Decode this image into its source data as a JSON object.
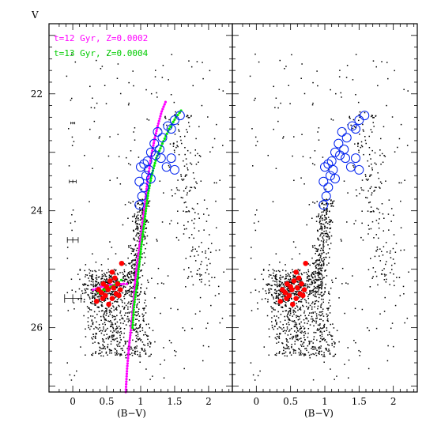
{
  "chart_data": [
    {
      "type": "scatter",
      "panel": "left",
      "y_axis_title": "V",
      "x_axis_title": "(B−V)",
      "xlim": [
        -0.35,
        2.35
      ],
      "ylim": [
        27.1,
        20.8
      ],
      "y_inverted": true,
      "x_ticks": [
        "0",
        "0.5",
        "1",
        "1.5",
        "2"
      ],
      "y_ticks": [
        "22",
        "24",
        "26"
      ],
      "legend": [
        {
          "label": "t=12 Gyr, Z=0.0002",
          "color": "#ff00ff"
        },
        {
          "label": "t=13 Gyr, Z=0.0004",
          "color": "#00ee00"
        }
      ],
      "isochrones": [
        {
          "color": "#ff00ff",
          "points": [
            [
              0.78,
              27.1
            ],
            [
              0.8,
              26.7
            ],
            [
              0.83,
              26.3
            ],
            [
              0.86,
              26.0
            ],
            [
              0.88,
              25.75
            ],
            [
              0.9,
              25.5
            ],
            [
              0.92,
              25.2
            ],
            [
              0.95,
              24.9
            ],
            [
              0.99,
              24.55
            ],
            [
              1.03,
              24.2
            ],
            [
              1.07,
              23.8
            ],
            [
              1.1,
              23.5
            ],
            [
              1.15,
              23.1
            ],
            [
              1.2,
              22.8
            ],
            [
              1.25,
              22.55
            ],
            [
              1.31,
              22.3
            ],
            [
              1.38,
              22.1
            ]
          ]
        },
        {
          "color": "#00ee00",
          "points": [
            [
              0.88,
              26.0
            ],
            [
              0.9,
              25.65
            ],
            [
              0.94,
              25.3
            ],
            [
              0.97,
              25.0
            ],
            [
              1.0,
              24.7
            ],
            [
              1.03,
              24.4
            ],
            [
              1.07,
              24.05
            ],
            [
              1.11,
              23.7
            ],
            [
              1.16,
              23.4
            ],
            [
              1.23,
              23.1
            ],
            [
              1.32,
              22.85
            ],
            [
              1.42,
              22.6
            ],
            [
              1.52,
              22.4
            ],
            [
              1.62,
              22.25
            ]
          ]
        },
        {
          "color": "#ff00ff",
          "points": [
            [
              0.3,
              25.35
            ],
            [
              0.42,
              25.3
            ],
            [
              0.55,
              25.27
            ],
            [
              0.65,
              25.27
            ],
            [
              0.75,
              25.25
            ],
            [
              0.84,
              25.25
            ]
          ]
        },
        {
          "color": "#00ee00",
          "points": [
            [
              0.38,
              25.4
            ],
            [
              0.5,
              25.33
            ],
            [
              0.6,
              25.28
            ],
            [
              0.68,
              25.22
            ],
            [
              0.75,
              25.15
            ]
          ]
        }
      ],
      "red_filled_points": [
        [
          0.38,
          25.35
        ],
        [
          0.42,
          25.4
        ],
        [
          0.45,
          25.25
        ],
        [
          0.48,
          25.45
        ],
        [
          0.5,
          25.3
        ],
        [
          0.52,
          25.35
        ],
        [
          0.55,
          25.2
        ],
        [
          0.58,
          25.5
        ],
        [
          0.6,
          25.32
        ],
        [
          0.62,
          25.15
        ],
        [
          0.64,
          25.42
        ],
        [
          0.66,
          25.25
        ],
        [
          0.7,
          25.35
        ],
        [
          0.53,
          25.6
        ],
        [
          0.35,
          25.55
        ],
        [
          0.58,
          25.05
        ],
        [
          0.72,
          24.9
        ],
        [
          0.44,
          25.5
        ],
        [
          0.68,
          25.45
        ]
      ],
      "blue_open_points": [
        [
          1.58,
          22.37
        ],
        [
          1.5,
          22.45
        ],
        [
          1.45,
          22.6
        ],
        [
          1.4,
          22.55
        ],
        [
          1.32,
          22.75
        ],
        [
          1.25,
          22.65
        ],
        [
          1.28,
          22.95
        ],
        [
          1.2,
          22.85
        ],
        [
          1.15,
          23.0
        ],
        [
          1.22,
          23.05
        ],
        [
          1.1,
          23.15
        ],
        [
          1.05,
          23.2
        ],
        [
          1.0,
          23.25
        ],
        [
          1.3,
          23.1
        ],
        [
          1.12,
          23.3
        ],
        [
          1.08,
          23.4
        ],
        [
          0.98,
          23.5
        ],
        [
          1.15,
          23.45
        ],
        [
          1.05,
          23.6
        ],
        [
          1.02,
          23.75
        ],
        [
          0.98,
          23.9
        ],
        [
          1.45,
          23.1
        ],
        [
          1.38,
          23.25
        ],
        [
          1.5,
          23.3
        ]
      ],
      "error_bars": [
        [
          0,
          22.5,
          0.03
        ],
        [
          0,
          23.5,
          0.05
        ],
        [
          0,
          24.5,
          0.08
        ],
        [
          0,
          25.5,
          0.12
        ]
      ]
    },
    {
      "type": "scatter",
      "panel": "right",
      "x_axis_title": "(B−V)",
      "xlim": [
        -0.35,
        2.35
      ],
      "ylim": [
        27.1,
        20.8
      ],
      "y_inverted": true,
      "x_ticks": [
        "0",
        "0.5",
        "1",
        "1.5",
        "2"
      ]
    }
  ]
}
